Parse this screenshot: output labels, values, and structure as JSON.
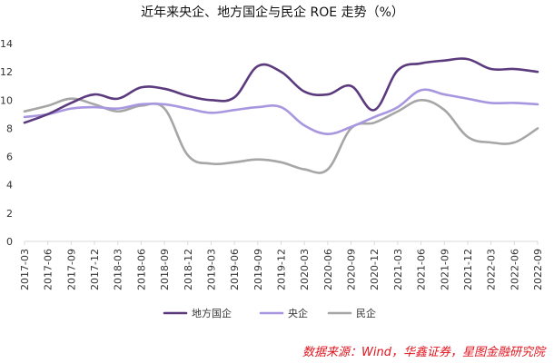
{
  "chart_data": {
    "type": "line",
    "title": "近年来央企、地方国企与民企 ROE 走势（%）",
    "xlabel": "",
    "ylabel": "",
    "ylim": [
      0,
      14
    ],
    "yticks": [
      0,
      2,
      4,
      6,
      8,
      10,
      12,
      14
    ],
    "grid": false,
    "legend_position": "bottom",
    "source": "数据来源：Wind，华鑫证券，星图金融研究院",
    "categories": [
      "2017-03",
      "2017-06",
      "2017-09",
      "2017-12",
      "2018-03",
      "2018-06",
      "2018-09",
      "2018-12",
      "2019-03",
      "2019-06",
      "2019-09",
      "2019-12",
      "2020-03",
      "2020-06",
      "2020-09",
      "2020-12",
      "2021-03",
      "2021-06",
      "2021-09",
      "2021-12",
      "2022-03",
      "2022-06",
      "2022-09"
    ],
    "series": [
      {
        "name": "地方国企",
        "color": "#5b3a7e",
        "values": [
          8.4,
          9.0,
          9.8,
          10.4,
          10.1,
          10.9,
          10.8,
          10.3,
          10.0,
          10.2,
          12.4,
          12.0,
          10.6,
          10.4,
          11.0,
          9.3,
          12.1,
          12.6,
          12.8,
          12.9,
          12.2,
          12.2,
          12.0
        ]
      },
      {
        "name": "央企",
        "color": "#a897e0",
        "values": [
          8.8,
          9.0,
          9.4,
          9.5,
          9.4,
          9.7,
          9.7,
          9.4,
          9.1,
          9.3,
          9.5,
          9.5,
          8.2,
          7.6,
          8.1,
          8.8,
          9.5,
          10.7,
          10.4,
          10.1,
          9.8,
          9.8,
          9.7
        ]
      },
      {
        "name": "民企",
        "color": "#a6a6a6",
        "values": [
          9.2,
          9.6,
          10.1,
          9.7,
          9.2,
          9.6,
          9.4,
          6.1,
          5.5,
          5.6,
          5.8,
          5.6,
          5.1,
          5.1,
          8.0,
          8.4,
          9.2,
          10.0,
          9.3,
          7.4,
          7.0,
          7.0,
          8.0
        ]
      }
    ]
  }
}
